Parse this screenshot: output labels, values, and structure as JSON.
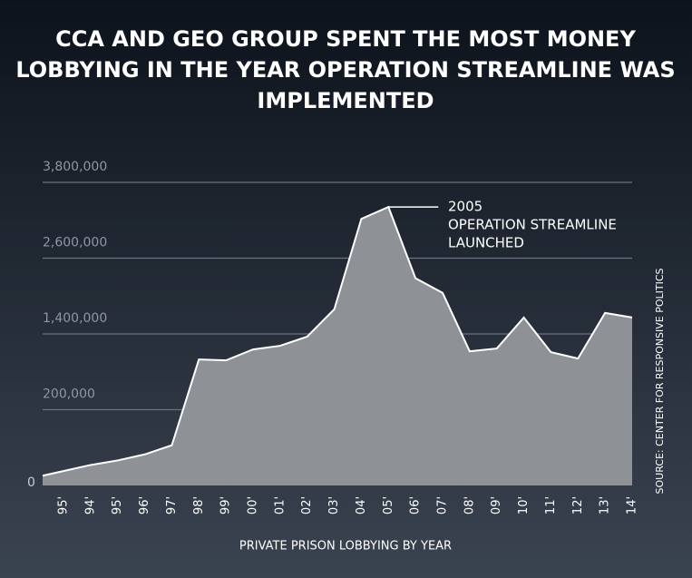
{
  "chart_data": {
    "type": "area",
    "title": [
      "CCA AND GEO GROUP SPENT THE MOST MONEY",
      "LOBBYING IN THE YEAR OPERATION STREAMLINE WAS",
      "IMPLEMENTED"
    ],
    "x_label": "PRIVATE PRISON LOBBYING BY YEAR",
    "source": "SOURCE: CENTER FOR RESPONSIVE POLITICS",
    "annotation": [
      "2005",
      "OPERATION STREAMLINE",
      "LAUNCHED"
    ],
    "categories": [
      "95'",
      "94'",
      "95'",
      "96'",
      "97'",
      "98'",
      "99'",
      "00'",
      "01'",
      "02'",
      "03'",
      "04'",
      "05'",
      "06'",
      "07'",
      "08'",
      "09'",
      "10'",
      "11'",
      "12'",
      "13'",
      "14'"
    ],
    "values": [
      38000,
      54000,
      66000,
      82000,
      106000,
      995000,
      981000,
      1154000,
      1212000,
      1357000,
      1790000,
      3222000,
      3410000,
      2282000,
      2051000,
      1125000,
      1169000,
      1660000,
      1111000,
      1010000,
      1733000,
      1660000
    ],
    "color": "#8e9196",
    "ylim": [
      0,
      3800000
    ],
    "yticks": [
      0,
      {
        "value": 200000,
        "label": "200,000"
      },
      {
        "value": 1400000,
        "label": "1,400,000"
      },
      {
        "value": 2600000,
        "label": "2,600,000"
      },
      {
        "value": 3800000,
        "label": "3,800,000"
      }
    ],
    "grid": true
  }
}
